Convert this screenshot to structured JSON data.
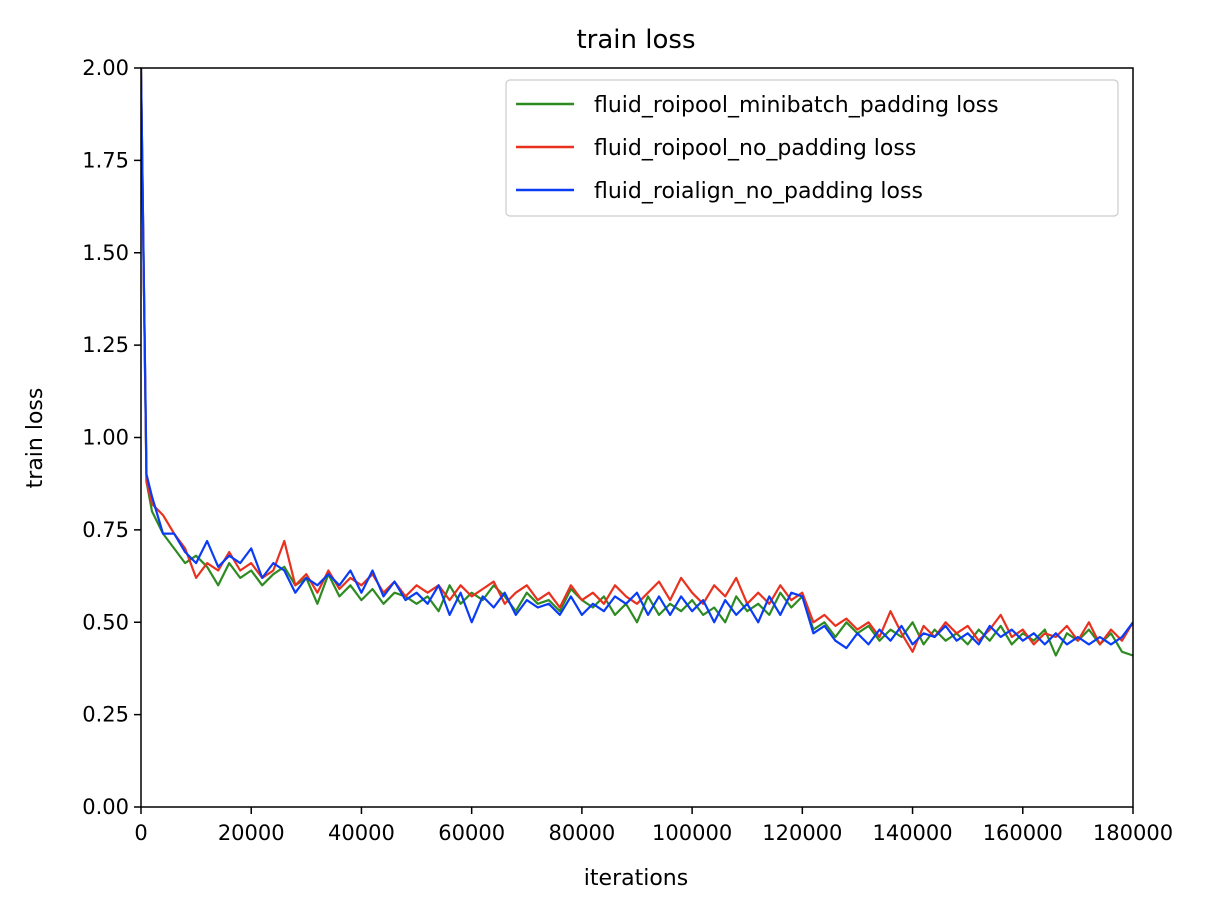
{
  "chart_data": {
    "type": "line",
    "title": "train loss",
    "xlabel": "iterations",
    "ylabel": "train loss",
    "xlim": [
      0,
      180000
    ],
    "ylim": [
      0,
      2.0
    ],
    "xticks": [
      0,
      20000,
      40000,
      60000,
      80000,
      100000,
      120000,
      140000,
      160000,
      180000
    ],
    "xtick_labels": [
      "0",
      "20000",
      "40000",
      "60000",
      "80000",
      "100000",
      "120000",
      "140000",
      "160000",
      "180000"
    ],
    "yticks": [
      0,
      0.25,
      0.5,
      0.75,
      1.0,
      1.25,
      1.5,
      1.75,
      2.0
    ],
    "ytick_labels": [
      "0.00",
      "0.25",
      "0.50",
      "0.75",
      "1.00",
      "1.25",
      "1.50",
      "1.75",
      "2.00"
    ],
    "grid": false,
    "legend_position": "top-right",
    "series": [
      {
        "name": "fluid_roipool_minibatch_padding loss",
        "color": "#2e8b22",
        "x": [
          0,
          1000,
          2000,
          4000,
          6000,
          8000,
          10000,
          12000,
          14000,
          16000,
          18000,
          20000,
          22000,
          24000,
          26000,
          28000,
          30000,
          32000,
          34000,
          36000,
          38000,
          40000,
          42000,
          44000,
          46000,
          48000,
          50000,
          52000,
          54000,
          56000,
          58000,
          60000,
          62000,
          64000,
          66000,
          68000,
          70000,
          72000,
          74000,
          76000,
          78000,
          80000,
          82000,
          84000,
          86000,
          88000,
          90000,
          92000,
          94000,
          96000,
          98000,
          100000,
          102000,
          104000,
          106000,
          108000,
          110000,
          112000,
          114000,
          116000,
          118000,
          120000,
          122000,
          124000,
          126000,
          128000,
          130000,
          132000,
          134000,
          136000,
          138000,
          140000,
          142000,
          144000,
          146000,
          148000,
          150000,
          152000,
          154000,
          156000,
          158000,
          160000,
          162000,
          164000,
          166000,
          168000,
          170000,
          172000,
          174000,
          176000,
          178000,
          180000
        ],
        "values": [
          2.0,
          0.88,
          0.8,
          0.74,
          0.7,
          0.66,
          0.68,
          0.65,
          0.6,
          0.66,
          0.62,
          0.64,
          0.6,
          0.63,
          0.65,
          0.6,
          0.62,
          0.55,
          0.63,
          0.57,
          0.6,
          0.56,
          0.59,
          0.55,
          0.58,
          0.57,
          0.55,
          0.57,
          0.53,
          0.6,
          0.55,
          0.58,
          0.56,
          0.6,
          0.57,
          0.53,
          0.58,
          0.55,
          0.56,
          0.53,
          0.59,
          0.56,
          0.54,
          0.57,
          0.52,
          0.55,
          0.5,
          0.57,
          0.52,
          0.55,
          0.53,
          0.56,
          0.52,
          0.54,
          0.5,
          0.57,
          0.53,
          0.55,
          0.52,
          0.58,
          0.54,
          0.57,
          0.48,
          0.5,
          0.46,
          0.5,
          0.47,
          0.49,
          0.45,
          0.48,
          0.46,
          0.5,
          0.44,
          0.48,
          0.45,
          0.47,
          0.44,
          0.48,
          0.45,
          0.49,
          0.44,
          0.47,
          0.45,
          0.48,
          0.41,
          0.47,
          0.45,
          0.48,
          0.44,
          0.47,
          0.42,
          0.41
        ]
      },
      {
        "name": "fluid_roipool_no_padding loss",
        "color": "#e8311e",
        "x": [
          0,
          1000,
          2000,
          4000,
          6000,
          8000,
          10000,
          12000,
          14000,
          16000,
          18000,
          20000,
          22000,
          24000,
          26000,
          28000,
          30000,
          32000,
          34000,
          36000,
          38000,
          40000,
          42000,
          44000,
          46000,
          48000,
          50000,
          52000,
          54000,
          56000,
          58000,
          60000,
          62000,
          64000,
          66000,
          68000,
          70000,
          72000,
          74000,
          76000,
          78000,
          80000,
          82000,
          84000,
          86000,
          88000,
          90000,
          92000,
          94000,
          96000,
          98000,
          100000,
          102000,
          104000,
          106000,
          108000,
          110000,
          112000,
          114000,
          116000,
          118000,
          120000,
          122000,
          124000,
          126000,
          128000,
          130000,
          132000,
          134000,
          136000,
          138000,
          140000,
          142000,
          144000,
          146000,
          148000,
          150000,
          152000,
          154000,
          156000,
          158000,
          160000,
          162000,
          164000,
          166000,
          168000,
          170000,
          172000,
          174000,
          176000,
          178000,
          180000
        ],
        "values": [
          2.0,
          0.88,
          0.82,
          0.79,
          0.74,
          0.7,
          0.62,
          0.66,
          0.64,
          0.69,
          0.64,
          0.66,
          0.62,
          0.64,
          0.72,
          0.6,
          0.63,
          0.58,
          0.64,
          0.59,
          0.62,
          0.6,
          0.63,
          0.58,
          0.61,
          0.57,
          0.6,
          0.58,
          0.6,
          0.56,
          0.6,
          0.57,
          0.59,
          0.61,
          0.55,
          0.58,
          0.6,
          0.56,
          0.58,
          0.54,
          0.6,
          0.56,
          0.58,
          0.55,
          0.6,
          0.57,
          0.55,
          0.58,
          0.61,
          0.56,
          0.62,
          0.58,
          0.55,
          0.6,
          0.57,
          0.62,
          0.55,
          0.58,
          0.55,
          0.6,
          0.56,
          0.58,
          0.5,
          0.52,
          0.49,
          0.51,
          0.48,
          0.5,
          0.46,
          0.53,
          0.47,
          0.42,
          0.49,
          0.46,
          0.5,
          0.47,
          0.49,
          0.45,
          0.48,
          0.52,
          0.46,
          0.48,
          0.44,
          0.47,
          0.46,
          0.49,
          0.45,
          0.5,
          0.44,
          0.48,
          0.45,
          0.5
        ]
      },
      {
        "name": "fluid_roialign_no_padding loss",
        "color": "#0a3cf5",
        "x": [
          0,
          1000,
          2000,
          4000,
          6000,
          8000,
          10000,
          12000,
          14000,
          16000,
          18000,
          20000,
          22000,
          24000,
          26000,
          28000,
          30000,
          32000,
          34000,
          36000,
          38000,
          40000,
          42000,
          44000,
          46000,
          48000,
          50000,
          52000,
          54000,
          56000,
          58000,
          60000,
          62000,
          64000,
          66000,
          68000,
          70000,
          72000,
          74000,
          76000,
          78000,
          80000,
          82000,
          84000,
          86000,
          88000,
          90000,
          92000,
          94000,
          96000,
          98000,
          100000,
          102000,
          104000,
          106000,
          108000,
          110000,
          112000,
          114000,
          116000,
          118000,
          120000,
          122000,
          124000,
          126000,
          128000,
          130000,
          132000,
          134000,
          136000,
          138000,
          140000,
          142000,
          144000,
          146000,
          148000,
          150000,
          152000,
          154000,
          156000,
          158000,
          160000,
          162000,
          164000,
          166000,
          168000,
          170000,
          172000,
          174000,
          176000,
          178000,
          180000
        ],
        "values": [
          2.0,
          0.9,
          0.84,
          0.74,
          0.74,
          0.69,
          0.66,
          0.72,
          0.65,
          0.68,
          0.66,
          0.7,
          0.62,
          0.66,
          0.64,
          0.58,
          0.62,
          0.6,
          0.63,
          0.6,
          0.64,
          0.58,
          0.64,
          0.57,
          0.61,
          0.56,
          0.58,
          0.55,
          0.6,
          0.52,
          0.58,
          0.5,
          0.57,
          0.54,
          0.58,
          0.52,
          0.56,
          0.54,
          0.55,
          0.52,
          0.57,
          0.52,
          0.55,
          0.53,
          0.57,
          0.55,
          0.58,
          0.52,
          0.57,
          0.52,
          0.57,
          0.53,
          0.56,
          0.5,
          0.56,
          0.52,
          0.55,
          0.5,
          0.57,
          0.52,
          0.58,
          0.57,
          0.47,
          0.49,
          0.45,
          0.43,
          0.47,
          0.44,
          0.48,
          0.45,
          0.49,
          0.44,
          0.47,
          0.46,
          0.49,
          0.45,
          0.47,
          0.44,
          0.49,
          0.46,
          0.48,
          0.45,
          0.47,
          0.44,
          0.47,
          0.44,
          0.46,
          0.44,
          0.46,
          0.44,
          0.46,
          0.5
        ]
      }
    ]
  }
}
